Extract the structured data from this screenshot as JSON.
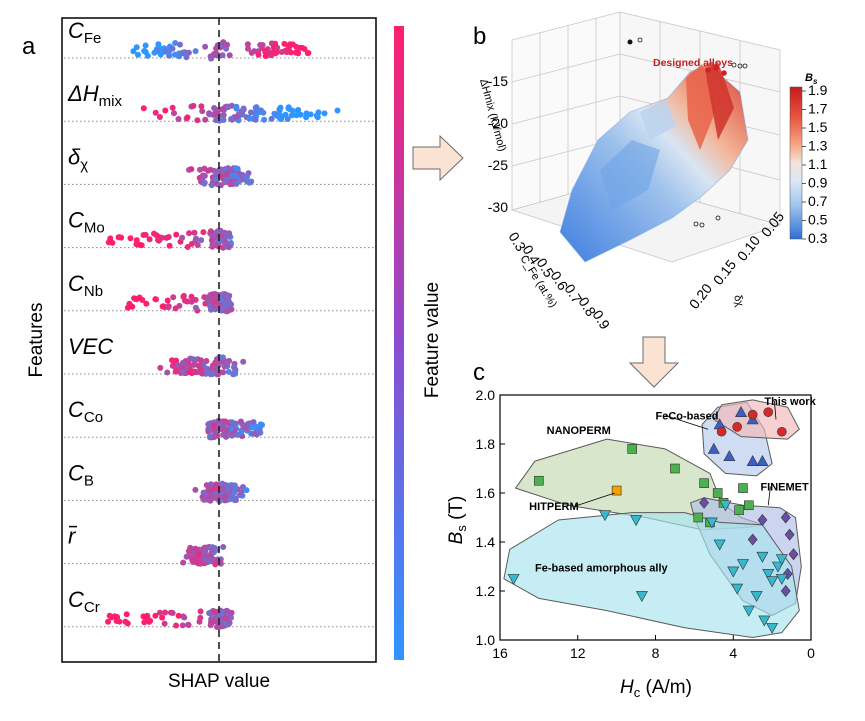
{
  "panel_labels": {
    "a": "a",
    "b": "b",
    "c": "c"
  },
  "chart_data": [
    {
      "type": "scatter",
      "subtype": "shap-beeswarm",
      "ylabel": "Features",
      "xlabel": "SHAP value",
      "colorbar_label": "Feature value",
      "colormap": [
        "#2f96ff",
        "#ff1f6e"
      ],
      "features": [
        {
          "base": "C",
          "sub": "Fe",
          "overline": false,
          "spread_low": -0.48,
          "spread_high": 0.52,
          "cluster": "bimodal"
        },
        {
          "base": "ΔH",
          "sub": "mix",
          "overline": false,
          "spread_low": -0.45,
          "spread_high": 0.78,
          "cluster": "wide"
        },
        {
          "base": "δ",
          "sub": "χ",
          "overline": false,
          "spread_low": -0.2,
          "spread_high": 0.28,
          "cluster": "center"
        },
        {
          "base": "C",
          "sub": "Mo",
          "overline": false,
          "spread_low": -0.62,
          "spread_high": 0.08,
          "cluster": "left-tail"
        },
        {
          "base": "C",
          "sub": "Nb",
          "overline": false,
          "spread_low": -0.52,
          "spread_high": 0.08,
          "cluster": "left-tail"
        },
        {
          "base": "VEC",
          "sub": "",
          "overline": false,
          "spread_low": -0.45,
          "spread_high": 0.25,
          "cluster": "center"
        },
        {
          "base": "C",
          "sub": "Co",
          "overline": false,
          "spread_low": -0.08,
          "spread_high": 0.25,
          "cluster": "right"
        },
        {
          "base": "C",
          "sub": "B",
          "overline": false,
          "spread_low": -0.17,
          "spread_high": 0.18,
          "cluster": "center"
        },
        {
          "base": "r",
          "sub": "",
          "overline": true,
          "spread_low": -0.22,
          "spread_high": 0.06,
          "cluster": "center"
        },
        {
          "base": "C",
          "sub": "Cr",
          "overline": false,
          "spread_low": -0.62,
          "spread_high": 0.05,
          "cluster": "left-tail"
        }
      ]
    },
    {
      "type": "surface3d",
      "annotation": "Designed alloys",
      "xlabel": "C_Fe (at.%)",
      "ylabel": "δχ",
      "zlabel": "ΔHmix (kJ/mol)",
      "x_ticks": [
        "0.3",
        "0.4",
        "0.5",
        "0.6",
        "0.7",
        "0.8",
        "0.9"
      ],
      "y_ticks": [
        "0.05",
        "0.10",
        "0.15",
        "0.20"
      ],
      "z_ticks": [
        "-15",
        "-20",
        "-25",
        "-30"
      ],
      "colorbar": {
        "title": "B",
        "title_sub": "s",
        "ticks": [
          "1.9",
          "1.7",
          "1.5",
          "1.3",
          "1.1",
          "0.9",
          "0.7",
          "0.5",
          "0.3"
        ],
        "colors": [
          "#c41a1e",
          "#e8553e",
          "#f6a685",
          "#f3e3dc",
          "#dbe8f5",
          "#9fc5ec",
          "#5b98e0",
          "#2f6ed6"
        ]
      }
    },
    {
      "type": "scatter",
      "xlabel": "H",
      "xlabel_sub": "c",
      "xlabel_unit": " (A/m)",
      "ylabel": "B",
      "ylabel_sub": "s",
      "ylabel_unit": " (T)",
      "xlim": [
        16,
        0
      ],
      "ylim": [
        1.0,
        2.0
      ],
      "x_ticks": [
        16,
        12,
        8,
        4,
        0
      ],
      "y_ticks": [
        1.0,
        1.2,
        1.4,
        1.6,
        1.8,
        2.0
      ],
      "regions": [
        {
          "name": "NANOPERM",
          "color": "#c3dab0",
          "marker": "square",
          "marker_color": "#4caf50",
          "points": [
            [
              14.0,
              1.65
            ],
            [
              9.2,
              1.78
            ],
            [
              7.0,
              1.7
            ],
            [
              5.5,
              1.64
            ],
            [
              4.8,
              1.6
            ],
            [
              3.5,
              1.62
            ],
            [
              3.7,
              1.53
            ],
            [
              3.2,
              1.55
            ],
            [
              5.8,
              1.5
            ],
            [
              5.2,
              1.48
            ],
            [
              4.5,
              1.56
            ]
          ]
        },
        {
          "name": "FeCo-based",
          "color": "#b6c9ee",
          "marker": "triangle-up",
          "marker_color": "#3b5fc4",
          "points": [
            [
              4.7,
              1.88
            ],
            [
              3.6,
              1.93
            ],
            [
              3.0,
              1.9
            ],
            [
              4.2,
              1.75
            ],
            [
              3.0,
              1.73
            ],
            [
              2.5,
              1.73
            ],
            [
              5.0,
              1.78
            ]
          ]
        },
        {
          "name": "This work",
          "color": "#f2b8b8",
          "marker": "circle",
          "marker_color": "#d62a2a",
          "points": [
            [
              3.0,
              1.92
            ],
            [
              2.2,
              1.93
            ],
            [
              1.5,
              1.85
            ],
            [
              3.8,
              1.87
            ],
            [
              4.6,
              1.85
            ]
          ]
        },
        {
          "name": "HITPERM",
          "color": "#f4a000",
          "marker": "square",
          "marker_color": "#f4a000",
          "points": [
            [
              10.0,
              1.61
            ]
          ]
        },
        {
          "name": "FINEMET",
          "color": "#b1bee6",
          "marker": "diamond",
          "marker_color": "#6a4ea6",
          "points": [
            [
              5.5,
              1.56
            ],
            [
              1.3,
              1.5
            ],
            [
              1.1,
              1.43
            ],
            [
              0.9,
              1.35
            ],
            [
              1.2,
              1.27
            ],
            [
              1.3,
              1.2
            ],
            [
              2.5,
              1.49
            ],
            [
              3.0,
              1.41
            ]
          ]
        },
        {
          "name": "Fe-based amorphous ally",
          "color": "#a9e4ee",
          "marker": "triangle-down",
          "marker_color": "#36b8cd",
          "points": [
            [
              15.3,
              1.25
            ],
            [
              10.6,
              1.51
            ],
            [
              9.0,
              1.49
            ],
            [
              8.7,
              1.18
            ],
            [
              5.1,
              1.48
            ],
            [
              4.4,
              1.55
            ],
            [
              4.7,
              1.39
            ],
            [
              4.0,
              1.28
            ],
            [
              3.5,
              1.31
            ],
            [
              2.5,
              1.34
            ],
            [
              2.2,
              1.27
            ],
            [
              2.0,
              1.24
            ],
            [
              1.7,
              1.3
            ],
            [
              1.5,
              1.25
            ],
            [
              3.8,
              1.21
            ],
            [
              3.2,
              1.12
            ],
            [
              2.8,
              1.18
            ],
            [
              2.4,
              1.08
            ],
            [
              2.0,
              1.05
            ],
            [
              1.5,
              1.33
            ]
          ]
        }
      ]
    }
  ]
}
